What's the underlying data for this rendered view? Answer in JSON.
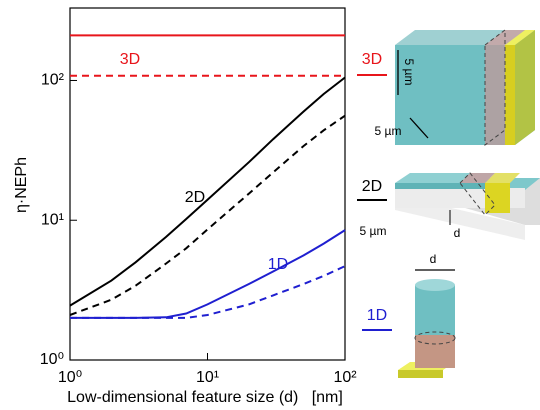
{
  "chart_data": {
    "type": "line",
    "xlabel": "Low-dimensional feature size (d)   [nm]",
    "ylabel": "η·NEPh",
    "xlog": true,
    "ylog": true,
    "x": [
      1,
      2,
      3,
      5,
      7,
      10,
      20,
      30,
      50,
      70,
      100
    ],
    "series": [
      {
        "name": "3D",
        "color": "#e8151b",
        "values": [
          210,
          210,
          210,
          210,
          210,
          210,
          210,
          210,
          210,
          210,
          210
        ],
        "dashed_values": [
          108,
          108,
          108,
          108,
          108,
          108,
          108,
          108,
          108,
          108,
          108
        ]
      },
      {
        "name": "2D",
        "color": "#000000",
        "values": [
          2.45,
          3.7,
          5,
          7.6,
          10.2,
          14,
          26,
          38,
          60,
          80,
          105
        ],
        "dashed_values": [
          2.1,
          2.7,
          3.4,
          4.9,
          6.3,
          8.6,
          15.5,
          22,
          34,
          44,
          56
        ]
      },
      {
        "name": "1D",
        "color": "#1f1fd0",
        "values": [
          2,
          2,
          2,
          2.02,
          2.15,
          2.5,
          3.5,
          4.3,
          5.6,
          6.8,
          8.5
        ],
        "dashed_values": [
          2,
          2,
          2,
          2,
          2,
          2.1,
          2.5,
          2.9,
          3.5,
          4,
          4.7
        ]
      }
    ],
    "xlim": [
      1,
      100
    ],
    "ylim": [
      1,
      330
    ],
    "xticks": [
      {
        "value": 1,
        "label": "10⁰"
      },
      {
        "value": 10,
        "label": "10¹"
      },
      {
        "value": 100,
        "label": "10²"
      }
    ],
    "yticks": [
      {
        "value": 1,
        "label": "10⁰"
      },
      {
        "value": 10,
        "label": "10¹"
      },
      {
        "value": 100,
        "label": "10²"
      }
    ]
  },
  "schematic": {
    "cube_height": "5 µm",
    "cube_depth": "5 µm",
    "slab_depth": "5 µm",
    "slab_thickness": "d",
    "wire_diameter": "d"
  }
}
